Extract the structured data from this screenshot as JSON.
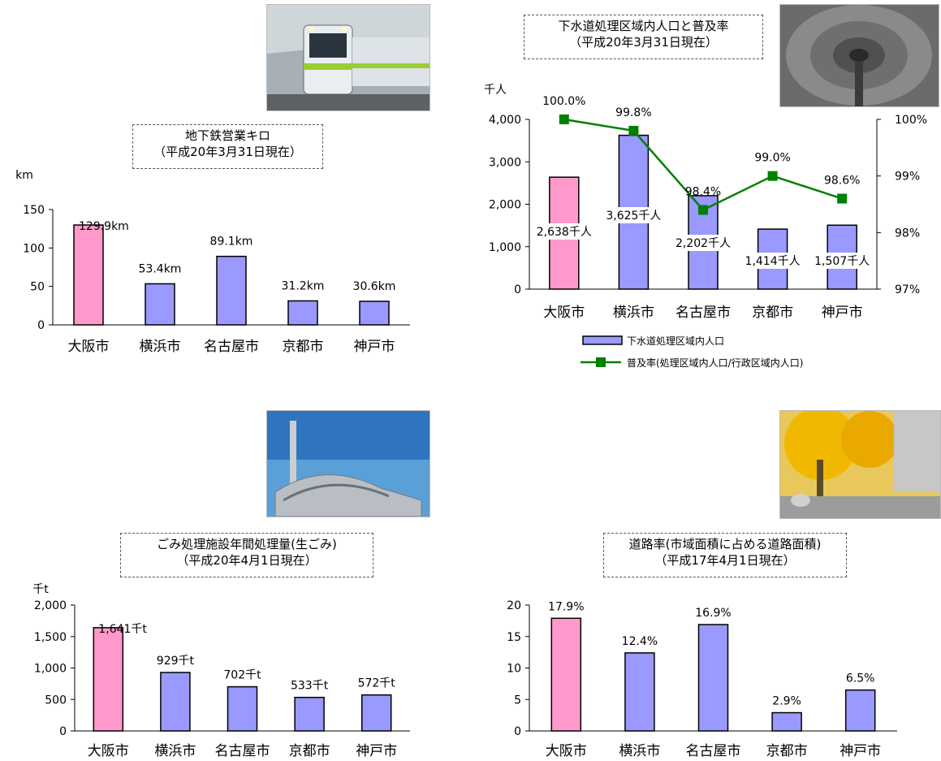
{
  "chart_data": [
    {
      "type": "bar",
      "title": "地下鉄営業キロ",
      "subtitle": "（平成20年3月31日現在）",
      "unit": "km",
      "categories": [
        "大阪市",
        "横浜市",
        "名古屋市",
        "京都市",
        "神戸市"
      ],
      "values": [
        129.9,
        53.4,
        89.1,
        31.2,
        30.6
      ],
      "labels": [
        "129.9km",
        "53.4km",
        "89.1km",
        "31.2km",
        "30.6km"
      ],
      "yticks": [
        "0",
        "50",
        "100",
        "150"
      ],
      "ylim": [
        0,
        150
      ],
      "colors": [
        "#ff99cc",
        "#9999ff",
        "#9999ff",
        "#9999ff",
        "#9999ff"
      ],
      "grid": false
    },
    {
      "type": "bar",
      "title": "下水道処理区域内人口と普及率",
      "subtitle": "（平成20年3月31日現在）",
      "unit": "千人",
      "categories": [
        "大阪市",
        "横浜市",
        "名古屋市",
        "京都市",
        "神戸市"
      ],
      "series": [
        {
          "name": "下水道処理区域内人口",
          "values": [
            2638,
            3625,
            2202,
            1414,
            1507
          ],
          "labels": [
            "2,638千人",
            "3,625千人",
            "2,202千人",
            "1,414千人",
            "1,507千人"
          ]
        },
        {
          "name": "普及率(処理区域内人口/行政区域内人口)",
          "type": "line",
          "values": [
            100.0,
            99.8,
            98.4,
            99.0,
            98.6
          ],
          "labels": [
            "100.0%",
            "99.8%",
            "98.4%",
            "99.0%",
            "98.6%"
          ]
        }
      ],
      "yticks": [
        "0",
        "1,000",
        "2,000",
        "3,000",
        "4,000"
      ],
      "ylim": [
        0,
        4000
      ],
      "y2ticks": [
        "97%",
        "98%",
        "99%",
        "100%"
      ],
      "y2lim": [
        97,
        100
      ],
      "colors": [
        "#ff99cc",
        "#9999ff",
        "#9999ff",
        "#9999ff",
        "#9999ff"
      ],
      "line_color": "#008000",
      "legend_position": "bottom",
      "grid": false
    },
    {
      "type": "bar",
      "title": "ごみ処理施設年間処理量(生ごみ)",
      "subtitle": "（平成20年4月1日現在）",
      "unit": "千t",
      "categories": [
        "大阪市",
        "横浜市",
        "名古屋市",
        "京都市",
        "神戸市"
      ],
      "values": [
        1641,
        929,
        702,
        533,
        572
      ],
      "labels": [
        "1,641千t",
        "929千t",
        "702千t",
        "533千t",
        "572千t"
      ],
      "yticks": [
        "0",
        "500",
        "1,000",
        "1,500",
        "2,000"
      ],
      "ylim": [
        0,
        2000
      ],
      "colors": [
        "#ff99cc",
        "#9999ff",
        "#9999ff",
        "#9999ff",
        "#9999ff"
      ],
      "grid": false
    },
    {
      "type": "bar",
      "title": "道路率(市域面積に占める道路面積)",
      "subtitle": "（平成17年4月1日現在）",
      "unit": "",
      "categories": [
        "大阪市",
        "横浜市",
        "名古屋市",
        "京都市",
        "神戸市"
      ],
      "values": [
        17.9,
        12.4,
        16.9,
        2.9,
        6.5
      ],
      "labels": [
        "17.9%",
        "12.4%",
        "16.9%",
        "2.9%",
        "6.5%"
      ],
      "yticks": [
        "0",
        "5",
        "10",
        "15",
        "20"
      ],
      "ylim": [
        0,
        20
      ],
      "colors": [
        "#ff99cc",
        "#9999ff",
        "#9999ff",
        "#9999ff",
        "#9999ff"
      ],
      "grid": false
    }
  ]
}
